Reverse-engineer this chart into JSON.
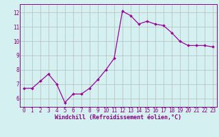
{
  "x": [
    0,
    1,
    2,
    3,
    4,
    5,
    6,
    7,
    8,
    9,
    10,
    11,
    12,
    13,
    14,
    15,
    16,
    17,
    18,
    19,
    20,
    21,
    22,
    23
  ],
  "y": [
    6.7,
    6.7,
    7.2,
    7.7,
    7.0,
    5.7,
    6.3,
    6.3,
    6.7,
    7.3,
    8.0,
    8.8,
    12.1,
    11.8,
    11.2,
    11.4,
    11.2,
    11.1,
    10.6,
    10.0,
    9.7,
    9.7,
    9.7,
    9.6
  ],
  "line_color": "#990099",
  "marker": "D",
  "marker_size": 1.8,
  "bg_color": "#d4f0f0",
  "grid_color": "#b0b0b0",
  "xlabel": "Windchill (Refroidissement éolien,°C)",
  "xlabel_color": "#800080",
  "xlabel_fontsize": 6.0,
  "ylabel_ticks": [
    6,
    7,
    8,
    9,
    10,
    11,
    12
  ],
  "xtick_labels": [
    "0",
    "1",
    "2",
    "3",
    "4",
    "5",
    "6",
    "7",
    "8",
    "9",
    "10",
    "11",
    "12",
    "13",
    "14",
    "15",
    "16",
    "17",
    "18",
    "19",
    "20",
    "21",
    "22",
    "23"
  ],
  "ylim": [
    5.4,
    12.6
  ],
  "xlim": [
    -0.5,
    23.5
  ],
  "tick_color": "#800080",
  "tick_fontsize": 5.5,
  "axis_color": "#800080",
  "linewidth": 0.9
}
